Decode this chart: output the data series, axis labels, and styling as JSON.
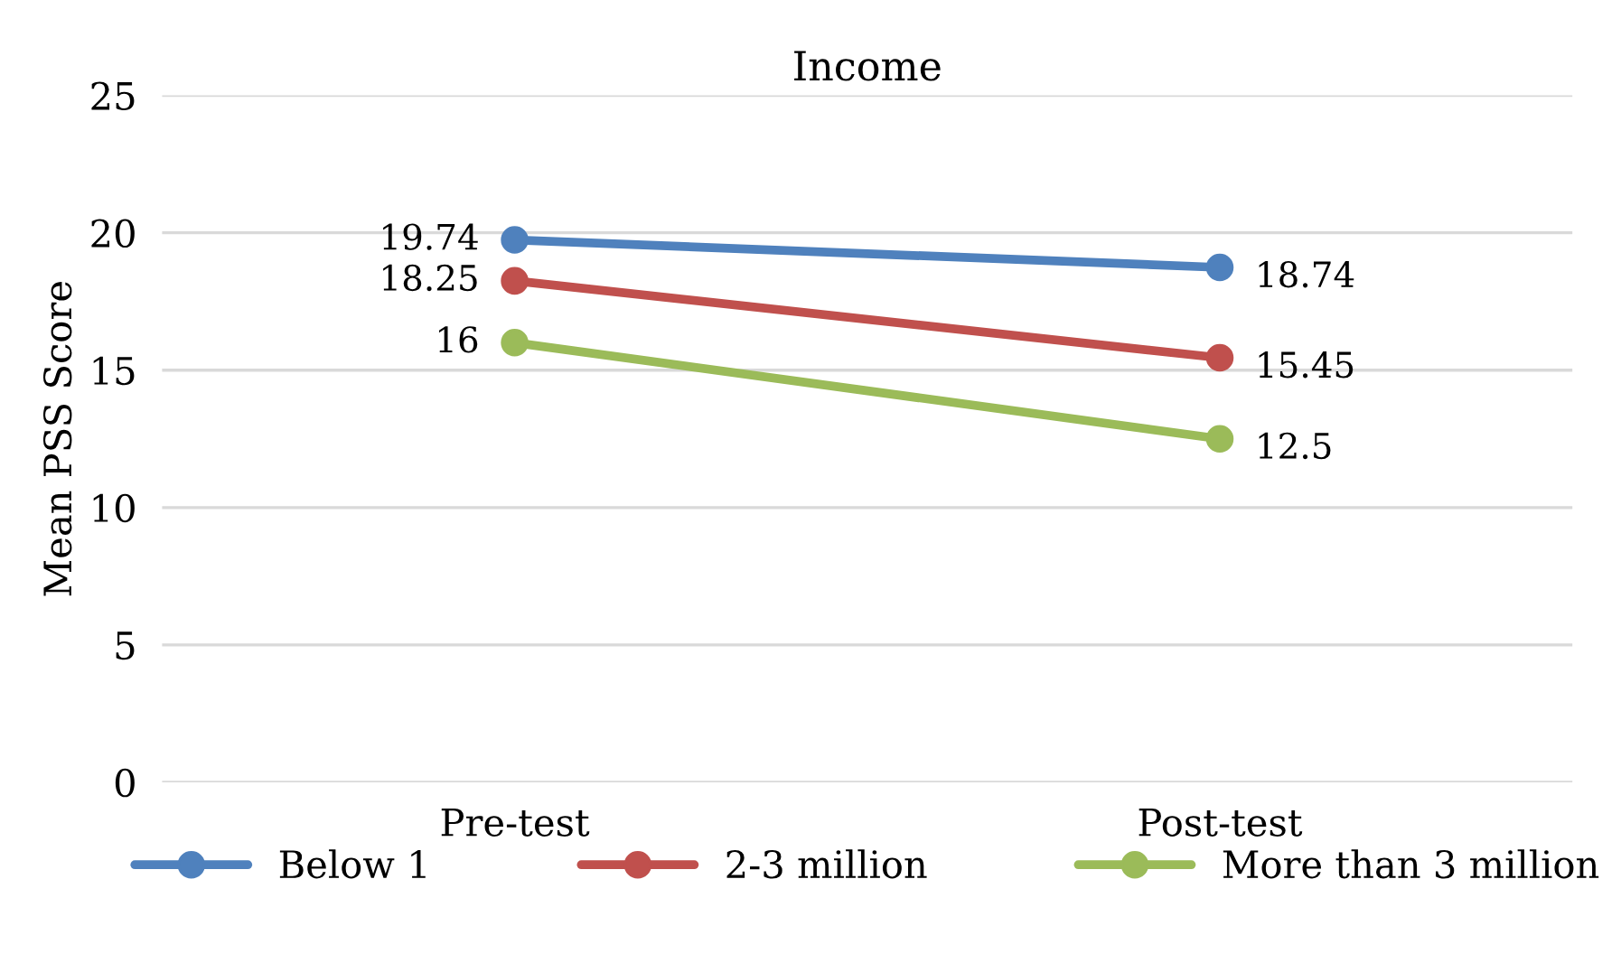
{
  "chart_data": {
    "type": "line",
    "title": "Income",
    "ylabel": "Mean PSS Score",
    "categories": [
      "Pre-test",
      "Post-test"
    ],
    "series": [
      {
        "name": "Below 1",
        "color": "#4f81bd",
        "values": [
          19.74,
          18.74
        ]
      },
      {
        "name": "2-3 million",
        "color": "#c0504d",
        "values": [
          18.25,
          15.45
        ]
      },
      {
        "name": "More than 3 million",
        "color": "#9bbb59",
        "values": [
          16,
          12.5
        ]
      }
    ],
    "ylim": [
      0,
      25
    ],
    "yticks": [
      0,
      5,
      10,
      15,
      20,
      25
    ],
    "grid": "y",
    "legend": "bottom",
    "marker": "circle",
    "line_style": "solid",
    "data_labels": true
  }
}
